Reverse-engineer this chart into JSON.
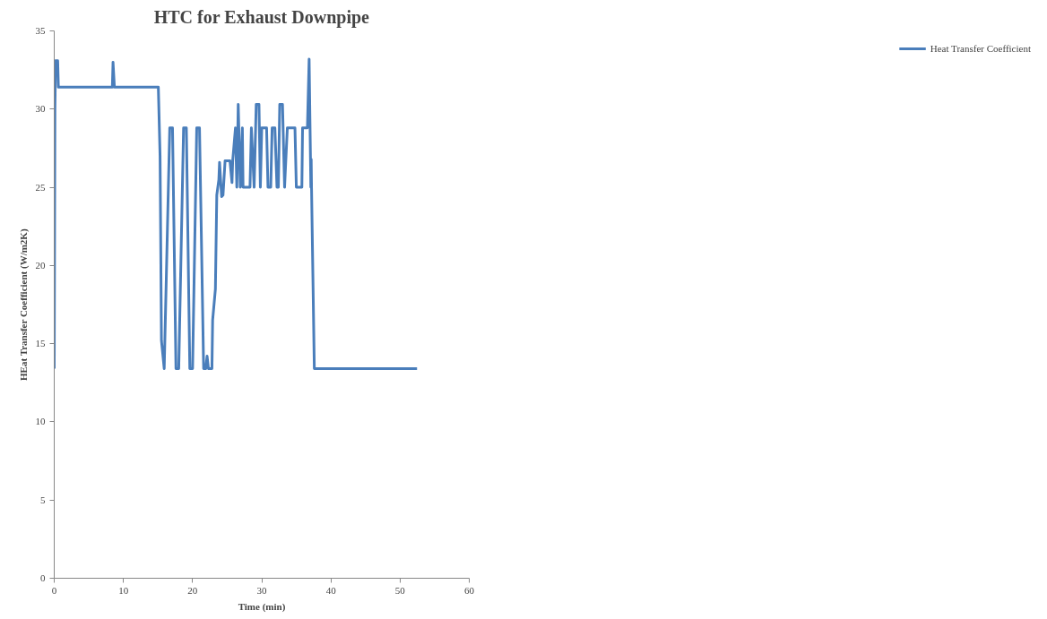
{
  "chart_data": {
    "type": "line",
    "title": "HTC for Exhaust Downpipe",
    "xlabel": "Time (min)",
    "ylabel": "HEat Transfer Coefficient (W/m2K)",
    "xlim": [
      0,
      60
    ],
    "ylim": [
      0,
      35
    ],
    "xticks": [
      0,
      10,
      20,
      30,
      40,
      50,
      60
    ],
    "yticks": [
      0,
      5,
      10,
      15,
      20,
      25,
      30,
      35
    ],
    "grid": false,
    "legend": "top right",
    "marker": "none",
    "line_style": "solid",
    "series": [
      {
        "name": "Heat Transfer Coefficient",
        "color": "#4a7ebb",
        "x": [
          0,
          0.1,
          0.2,
          0.5,
          0.6,
          8.4,
          8.5,
          8.7,
          15.05,
          15.3,
          15.5,
          15.9,
          16.7,
          17.1,
          17.6,
          18.0,
          18.7,
          19.1,
          19.6,
          20.0,
          20.6,
          21.0,
          21.6,
          21.9,
          22.1,
          22.3,
          22.8,
          22.9,
          23.3,
          23.5,
          23.8,
          23.9,
          24.2,
          24.4,
          24.7,
          25.4,
          25.7,
          25.8,
          26.2,
          26.4,
          26.6,
          26.9,
          27.2,
          27.3,
          28.3,
          28.5,
          28.9,
          29.2,
          29.6,
          29.8,
          30.0,
          30.7,
          30.9,
          31.3,
          31.5,
          31.9,
          32.2,
          32.4,
          32.6,
          33.0,
          33.3,
          33.7,
          34.8,
          35.0,
          35.8,
          35.9,
          36.6,
          36.85,
          37.1,
          37.15,
          37.2,
          37.6,
          52.45
        ],
        "values": [
          13.4,
          30,
          33.1,
          33.1,
          31.4,
          31.4,
          33.0,
          31.4,
          31.4,
          27,
          15.2,
          13.4,
          28.8,
          28.8,
          13.4,
          13.4,
          28.8,
          28.8,
          13.4,
          13.4,
          28.8,
          28.8,
          13.4,
          13.4,
          14.2,
          13.4,
          13.4,
          16.5,
          18.5,
          24.5,
          25.5,
          26.6,
          24.4,
          24.5,
          26.7,
          26.7,
          25.3,
          26.7,
          28.8,
          25.0,
          30.3,
          25.0,
          28.8,
          25.0,
          25.0,
          28.8,
          25.0,
          30.3,
          30.3,
          25.0,
          28.8,
          28.8,
          25.0,
          25.0,
          28.8,
          28.8,
          25.0,
          25.0,
          30.3,
          30.3,
          25.0,
          28.8,
          28.8,
          25.0,
          25.0,
          28.8,
          28.8,
          33.2,
          25.0,
          26.8,
          24.9,
          13.4,
          13.4
        ]
      }
    ]
  }
}
